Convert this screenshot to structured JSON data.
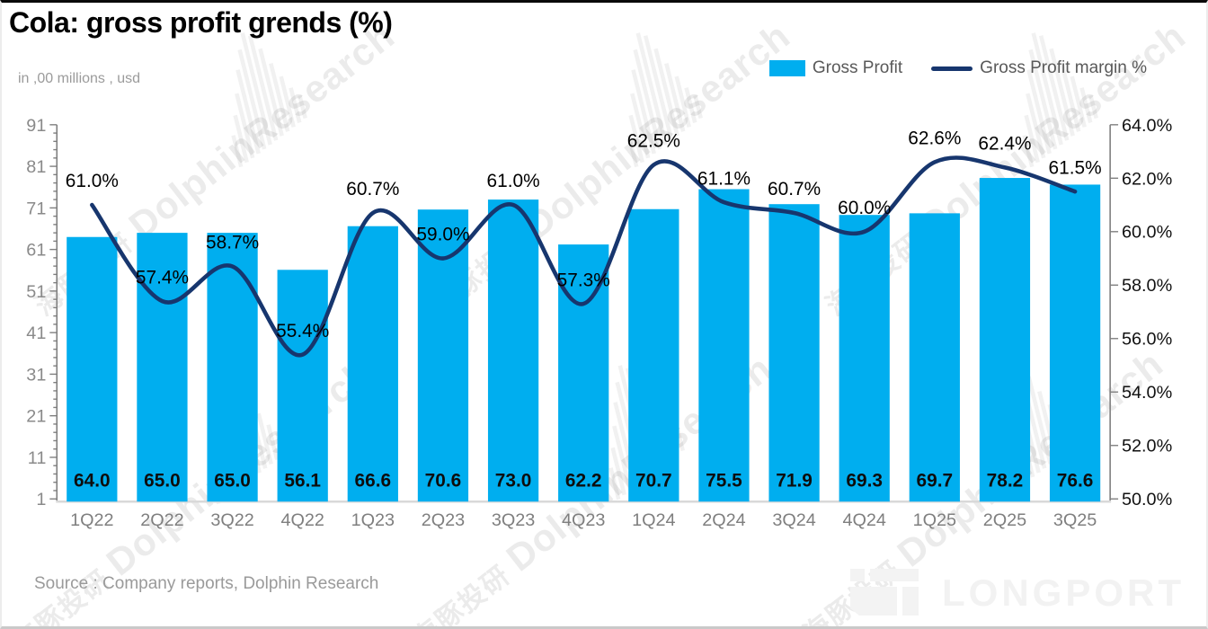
{
  "title": "Cola: gross profit grends (%)",
  "subtitle": "in ,00 millions , usd",
  "legend": {
    "bar_label": "Gross Profit",
    "line_label": "Gross Profit margin %"
  },
  "source": "Source : Company reports, Dolphin Research",
  "watermark": {
    "cn": "海豚投研",
    "en": "DolphinResearch"
  },
  "brand": {
    "logo_text": "LONGPORT"
  },
  "colors": {
    "bar": "#00AEEF",
    "line": "#17366E",
    "axis": "#7f7f7f",
    "baseline": "#d9d9d9",
    "left_tick_text": "#8a8a8a",
    "right_tick_text": "#111111",
    "category_text": "#7f7f7f",
    "value_label_text": "#0d0d0d",
    "margin_label_text": "#000000"
  },
  "chart_data": {
    "type": "bar",
    "title": "Cola: gross profit grends (%)",
    "categories": [
      "1Q22",
      "2Q22",
      "3Q22",
      "4Q22",
      "1Q23",
      "2Q23",
      "3Q23",
      "4Q23",
      "1Q24",
      "2Q24",
      "3Q24",
      "4Q24",
      "1Q25",
      "2Q25",
      "3Q25"
    ],
    "series": [
      {
        "name": "Gross Profit",
        "type": "bar",
        "axis": "left",
        "color": "#00AEEF",
        "values": [
          64.0,
          65.0,
          65.0,
          56.1,
          66.6,
          70.6,
          73.0,
          62.2,
          70.7,
          75.5,
          71.9,
          69.3,
          69.7,
          78.2,
          76.6
        ]
      },
      {
        "name": "Gross Profit margin %",
        "type": "line",
        "axis": "right",
        "color": "#17366E",
        "unit": "%",
        "values": [
          61.0,
          57.4,
          58.7,
          55.4,
          60.7,
          59.0,
          61.0,
          57.3,
          62.5,
          61.1,
          60.7,
          60.0,
          62.6,
          62.4,
          61.5
        ]
      }
    ],
    "left_axis": {
      "min": 1,
      "max": 91,
      "major_step": 10,
      "minor_step": 2,
      "labels": [
        "91",
        "81",
        "71",
        "61",
        "51",
        "41",
        "31",
        "21",
        "11",
        "1"
      ]
    },
    "right_axis": {
      "min": 50,
      "max": 64,
      "step": 2,
      "labels": [
        "64.0%",
        "62.0%",
        "60.0%",
        "58.0%",
        "56.0%",
        "54.0%",
        "52.0%",
        "50.0%"
      ]
    },
    "grid": false,
    "legend_position": "top-right",
    "line_smooth": true
  }
}
